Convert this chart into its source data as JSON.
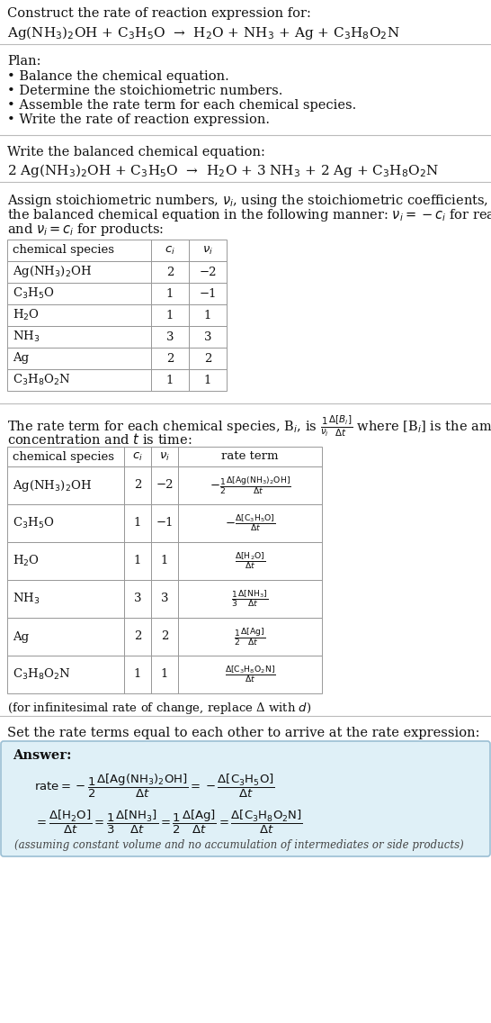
{
  "bg_color": "#ffffff",
  "text_color": "#111111",
  "title_line1": "Construct the rate of reaction expression for:",
  "reaction_unbalanced": "Ag(NH$_3$)$_2$OH + C$_3$H$_5$O  →  H$_2$O + NH$_3$ + Ag + C$_3$H$_8$O$_2$N",
  "plan_header": "Plan:",
  "plan_items": [
    "• Balance the chemical equation.",
    "• Determine the stoichiometric numbers.",
    "• Assemble the rate term for each chemical species.",
    "• Write the rate of reaction expression."
  ],
  "balanced_header": "Write the balanced chemical equation:",
  "reaction_balanced": "2 Ag(NH$_3$)$_2$OH + C$_3$H$_5$O  →  H$_2$O + 3 NH$_3$ + 2 Ag + C$_3$H$_8$O$_2$N",
  "table1_cols": [
    "chemical species",
    "$c_i$",
    "$\\nu_i$"
  ],
  "table1_rows": [
    [
      "Ag(NH$_3$)$_2$OH",
      "2",
      "−2"
    ],
    [
      "C$_3$H$_5$O",
      "1",
      "−1"
    ],
    [
      "H$_2$O",
      "1",
      "1"
    ],
    [
      "NH$_3$",
      "3",
      "3"
    ],
    [
      "Ag",
      "2",
      "2"
    ],
    [
      "C$_3$H$_8$O$_2$N",
      "1",
      "1"
    ]
  ],
  "table2_cols": [
    "chemical species",
    "$c_i$",
    "$\\nu_i$",
    "rate term"
  ],
  "table2_rows": [
    [
      "Ag(NH$_3$)$_2$OH",
      "2",
      "−2",
      "$-\\frac{1}{2}\\frac{\\Delta[\\mathrm{Ag(NH_3)_2OH}]}{\\Delta t}$"
    ],
    [
      "C$_3$H$_5$O",
      "1",
      "−1",
      "$-\\frac{\\Delta[\\mathrm{C_3H_5O}]}{\\Delta t}$"
    ],
    [
      "H$_2$O",
      "1",
      "1",
      "$\\frac{\\Delta[\\mathrm{H_2O}]}{\\Delta t}$"
    ],
    [
      "NH$_3$",
      "3",
      "3",
      "$\\frac{1}{3}\\frac{\\Delta[\\mathrm{NH_3}]}{\\Delta t}$"
    ],
    [
      "Ag",
      "2",
      "2",
      "$\\frac{1}{2}\\frac{\\Delta[\\mathrm{Ag}]}{\\Delta t}$"
    ],
    [
      "C$_3$H$_8$O$_2$N",
      "1",
      "1",
      "$\\frac{\\Delta[\\mathrm{C_3H_8O_2N}]}{\\Delta t}$"
    ]
  ],
  "infinitesimal_note": "(for infinitesimal rate of change, replace Δ with $d$)",
  "set_rate_text": "Set the rate terms equal to each other to arrive at the rate expression:",
  "answer_box_color": "#dff0f7",
  "answer_box_border": "#9bbfd4",
  "answer_label": "Answer:",
  "answer_line1": "$\\mathrm{rate} = -\\dfrac{1}{2}\\dfrac{\\Delta[\\mathrm{Ag(NH_3)_2OH}]}{\\Delta t} = -\\dfrac{\\Delta[\\mathrm{C_3H_5O}]}{\\Delta t}$",
  "answer_line2": "$= \\dfrac{\\Delta[\\mathrm{H_2O}]}{\\Delta t} = \\dfrac{1}{3}\\dfrac{\\Delta[\\mathrm{NH_3}]}{\\Delta t} = \\dfrac{1}{2}\\dfrac{\\Delta[\\mathrm{Ag}]}{\\Delta t} = \\dfrac{\\Delta[\\mathrm{C_3H_8O_2N}]}{\\Delta t}$",
  "answer_note": "(assuming constant volume and no accumulation of intermediates or side products)"
}
